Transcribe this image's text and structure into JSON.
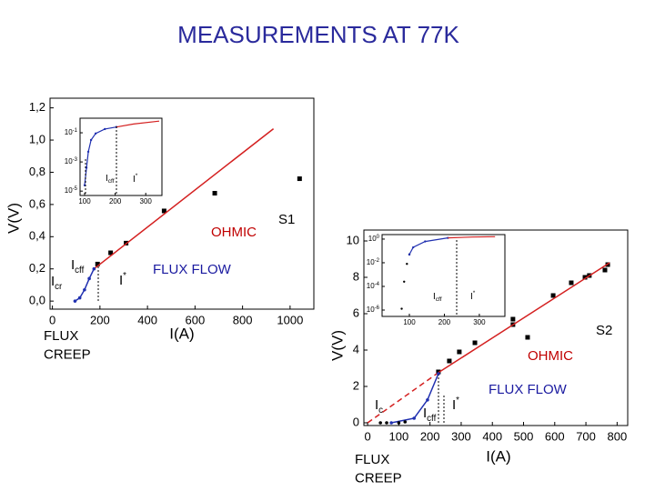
{
  "title": "MEASUREMENTS AT 77K",
  "chart_data": [
    {
      "type": "line",
      "xlabel": "I(A)",
      "ylabel": "V(V)",
      "xlim": [
        -10,
        1100
      ],
      "ylim": [
        -0.05,
        1.26
      ],
      "xticks": [
        0,
        200,
        400,
        600,
        800,
        1000
      ],
      "yticks": [
        {
          "value": 0,
          "label": "0,0"
        },
        {
          "value": 0.2,
          "label": "0,2"
        },
        {
          "value": 0.4,
          "label": "0,4"
        },
        {
          "value": 0.6,
          "label": "0,6"
        },
        {
          "value": 0.8,
          "label": "0,8"
        },
        {
          "value": 1.0,
          "label": "1,0"
        },
        {
          "value": 1.2,
          "label": "1,2"
        }
      ],
      "series": [
        {
          "color": "#000000",
          "marker": "square",
          "x": [
            190,
            245,
            310,
            470,
            683,
            1040
          ],
          "values": [
            0.23,
            0.3,
            0.36,
            0.56,
            0.67,
            0.76
          ]
        },
        {
          "color": "#d42020",
          "line": true,
          "x": [
            175,
            930
          ],
          "values": [
            0.2,
            1.07
          ]
        },
        {
          "color": "#2030b0",
          "line": true,
          "marker": "circle",
          "x": [
            95,
            115,
            135,
            155,
            175
          ],
          "values": [
            0,
            0.02,
            0.07,
            0.14,
            0.2
          ]
        }
      ],
      "annotations": [
        {
          "text": "OHMIC",
          "color": "#c00000"
        },
        {
          "text": "S1",
          "color": "#000000"
        },
        {
          "text": "FLUX FLOW",
          "color": "#1a1aa0"
        },
        {
          "lines": [
            "FLUX",
            "CREEP"
          ],
          "color": "#000000"
        },
        {
          "text": "I",
          "sub": "cff",
          "color": "#000000"
        },
        {
          "text": "I",
          "sub": "cr",
          "color": "#000000"
        },
        {
          "text": "I",
          "sup": "*",
          "color": "#000000"
        }
      ]
    },
    {
      "type": "line",
      "log_y": true,
      "xlim": [
        85,
        353
      ],
      "ylim": [
        5e-06,
        1
      ],
      "xticks": [
        100,
        200,
        300
      ],
      "yticks": [
        {
          "value": 0.1,
          "label": "10",
          "exp": "-1"
        },
        {
          "value": 0.001,
          "label": "10",
          "exp": "-3"
        },
        {
          "value": 1e-05,
          "label": "10",
          "exp": "-5"
        }
      ],
      "series": [
        {
          "color": "#2030b0",
          "line": true,
          "marker": "circle",
          "x": [
            100,
            106,
            112,
            121,
            136,
            166,
            204
          ],
          "values": [
            2.5e-05,
            0.0004,
            0.005,
            0.032,
            0.089,
            0.18,
            0.25
          ]
        },
        {
          "color": "#d42020",
          "line": true,
          "x": [
            204,
            260,
            344
          ],
          "values": [
            0.25,
            0.4,
            0.63
          ]
        }
      ],
      "annotations": [
        {
          "text": "I",
          "sub": "cff",
          "color": "#000000"
        },
        {
          "text": "I",
          "sup": "*",
          "color": "#000000"
        }
      ]
    },
    {
      "type": "line",
      "xlabel": "I(A)",
      "ylabel": "V(V)",
      "xlim": [
        -12,
        834
      ],
      "ylim": [
        -0.15,
        10.6
      ],
      "xticks": [
        0,
        100,
        200,
        300,
        400,
        500,
        600,
        700,
        800
      ],
      "yticks": [
        0,
        2,
        4,
        6,
        8,
        10
      ],
      "series": [
        {
          "color": "#000000",
          "marker": "square",
          "x": [
            227,
            262,
            294,
            344,
            466,
            466,
            513,
            595,
            653,
            697,
            711,
            761,
            770
          ],
          "values": [
            2.8,
            3.4,
            3.9,
            4.4,
            5.7,
            5.4,
            4.7,
            7.0,
            7.7,
            8.0,
            8.1,
            8.4,
            8.7
          ]
        },
        {
          "color": "#d42020",
          "line": true,
          "x": [
            227,
            776
          ],
          "values": [
            2.76,
            8.8
          ]
        },
        {
          "color": "#d42020",
          "line": true,
          "dashed": true,
          "x": [
            0,
            227
          ],
          "values": [
            0,
            2.76
          ]
        },
        {
          "color": "#2030b0",
          "line": true,
          "marker": "circle",
          "x": [
            76,
            149,
            192,
            227
          ],
          "values": [
            0,
            0.25,
            1.26,
            2.7
          ]
        },
        {
          "color": "#000000",
          "marker": "circle",
          "x": [
            41,
            61,
            100,
            120
          ],
          "values": [
            0,
            0,
            0,
            0.05
          ]
        }
      ],
      "annotations": [
        {
          "text": "S2",
          "color": "#000000"
        },
        {
          "text": "OHMIC",
          "color": "#c00000"
        },
        {
          "text": "FLUX FLOW",
          "color": "#1a1aa0"
        },
        {
          "lines": [
            "FLUX",
            "CREEP"
          ],
          "color": "#000000"
        },
        {
          "text": "I",
          "sub": "c",
          "color": "#000000"
        },
        {
          "text": "I",
          "sub": "cff",
          "color": "#000000"
        },
        {
          "text": "I",
          "sup": "*",
          "color": "#000000"
        }
      ]
    },
    {
      "type": "line",
      "log_y": true,
      "xlim": [
        22,
        373
      ],
      "ylim": [
        2.9e-07,
        2.4
      ],
      "xticks": [
        100,
        200,
        300
      ],
      "yticks": [
        {
          "value": 1,
          "label": "10",
          "exp": "0"
        },
        {
          "value": 0.01,
          "label": "10",
          "exp": "-2"
        },
        {
          "value": 0.0001,
          "label": "10",
          "exp": "-4"
        },
        {
          "value": 1e-06,
          "label": "10",
          "exp": "-6"
        }
      ],
      "series": [
        {
          "color": "#000000",
          "marker": "circle",
          "x": [
            78,
            85,
            93,
            100
          ],
          "values": [
            1.3e-06,
            0.00025,
            0.008,
            0.05
          ]
        },
        {
          "color": "#2030b0",
          "line": true,
          "marker": "circle",
          "x": [
            100,
            111,
            145,
            210
          ],
          "values": [
            0.05,
            0.2,
            0.63,
            1.26
          ]
        },
        {
          "color": "#d42020",
          "line": true,
          "x": [
            210,
            280,
            345
          ],
          "values": [
            1.26,
            1.5,
            1.6
          ]
        }
      ],
      "annotations": [
        {
          "text": "I",
          "sub": "cff",
          "color": "#000000"
        },
        {
          "text": "I",
          "sup": "*",
          "color": "#000000"
        }
      ]
    }
  ]
}
